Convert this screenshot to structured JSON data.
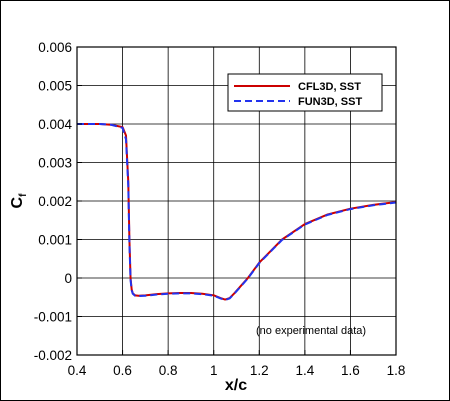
{
  "chart_data": {
    "type": "line",
    "xlabel": "x/c",
    "ylabel_main": "C",
    "ylabel_sub": "f",
    "xlim": [
      0.4,
      1.8
    ],
    "ylim": [
      -0.002,
      0.006
    ],
    "xticks": [
      "0.4",
      "0.6",
      "0.8",
      "1",
      "1.2",
      "1.4",
      "1.6",
      "1.8"
    ],
    "yticks": [
      "-0.002",
      "-0.001",
      "0",
      "0.001",
      "0.002",
      "0.003",
      "0.004",
      "0.005",
      "0.006"
    ],
    "grid": true,
    "legend_position": "top-right",
    "annotation": "(no experimental data)",
    "series": [
      {
        "name": "CFL3D, SST",
        "color": "#cc0000",
        "dash": "solid",
        "x": [
          0.4,
          0.5,
          0.55,
          0.6,
          0.615,
          0.625,
          0.63,
          0.635,
          0.64,
          0.645,
          0.655,
          0.67,
          0.7,
          0.75,
          0.8,
          0.85,
          0.9,
          0.95,
          1.0,
          1.03,
          1.05,
          1.07,
          1.09,
          1.12,
          1.15,
          1.2,
          1.3,
          1.4,
          1.5,
          1.6,
          1.7,
          1.8
        ],
        "y": [
          0.004,
          0.004,
          0.00398,
          0.00392,
          0.0037,
          0.0025,
          0.001,
          0.0,
          -0.0003,
          -0.0004,
          -0.00045,
          -0.00046,
          -0.00045,
          -0.00042,
          -0.0004,
          -0.00039,
          -0.00039,
          -0.00041,
          -0.00045,
          -0.00052,
          -0.00056,
          -0.00052,
          -0.0004,
          -0.0002,
          0.0,
          0.0004,
          0.001,
          0.0014,
          0.00165,
          0.0018,
          0.0019,
          0.00197
        ]
      },
      {
        "name": "FUN3D, SST",
        "color": "#2233ee",
        "dash": "dashed",
        "x": [
          0.4,
          0.5,
          0.55,
          0.6,
          0.615,
          0.625,
          0.63,
          0.635,
          0.64,
          0.645,
          0.655,
          0.67,
          0.7,
          0.75,
          0.8,
          0.85,
          0.9,
          0.95,
          1.0,
          1.03,
          1.05,
          1.07,
          1.09,
          1.12,
          1.15,
          1.2,
          1.3,
          1.4,
          1.5,
          1.6,
          1.7,
          1.8
        ],
        "y": [
          0.004,
          0.004,
          0.00398,
          0.0039,
          0.0036,
          0.0024,
          0.0009,
          -5e-05,
          -0.00032,
          -0.00041,
          -0.00046,
          -0.00047,
          -0.00046,
          -0.00043,
          -0.00041,
          -0.0004,
          -0.0004,
          -0.00042,
          -0.00046,
          -0.00053,
          -0.00057,
          -0.00053,
          -0.00041,
          -0.00021,
          -1e-05,
          0.00039,
          0.00099,
          0.00139,
          0.00164,
          0.00179,
          0.00189,
          0.00196
        ]
      }
    ]
  }
}
